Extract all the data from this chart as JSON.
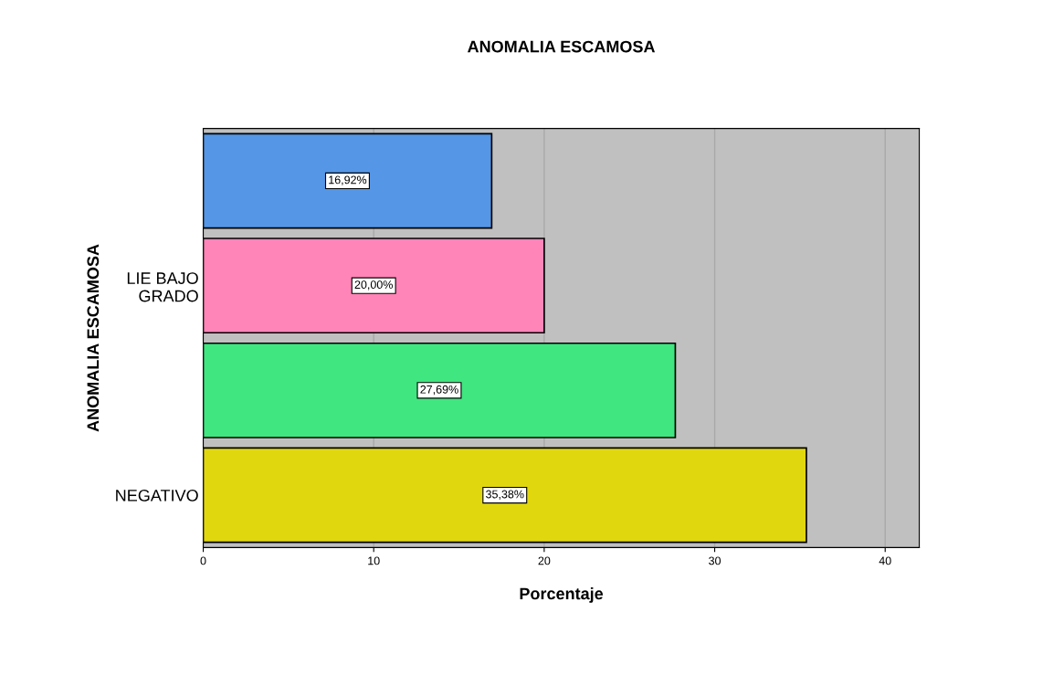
{
  "chart_data": {
    "type": "bar",
    "orientation": "horizontal",
    "title": "ANOMALIA ESCAMOSA",
    "xlabel": "Porcentaje",
    "ylabel": "ANOMALIA ESCAMOSA",
    "categories": [
      null,
      "LIE BAJO\nGRADO",
      null,
      "NEGATIVO"
    ],
    "values": [
      16.92,
      20.0,
      27.69,
      35.38
    ],
    "colors": [
      "#5596e6",
      "#ff85b8",
      "#40e680",
      "#e1d70e"
    ],
    "value_labels": [
      "16,92%",
      "20,00%",
      "27,69%",
      "35,38%"
    ],
    "xlim": [
      0,
      42
    ],
    "xticks": [
      0,
      10,
      20,
      30,
      40
    ],
    "grid": "x"
  }
}
